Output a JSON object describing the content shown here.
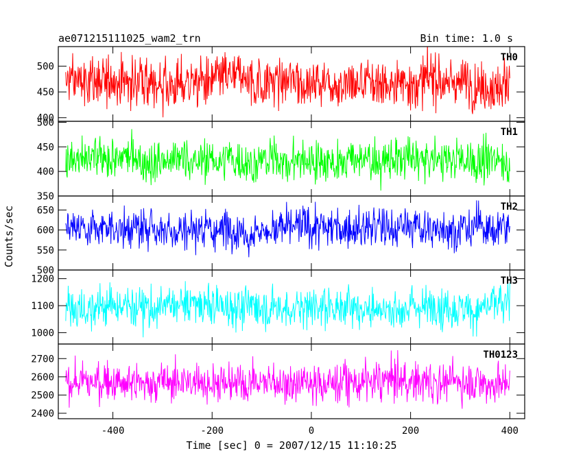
{
  "chart_data": {
    "type": "line",
    "title": "ae071215111025_wam2_trn",
    "subtitle": "Bin time: 1.0 s",
    "xlabel": "Time [sec] 0 = 2007/12/15 11:10:25",
    "ylabel": "Counts/sec",
    "xlim": [
      -510,
      430
    ],
    "x_ticks": [
      -400,
      -200,
      0,
      200,
      400
    ],
    "x_range": [
      -495,
      400
    ],
    "bin_time": 1.0,
    "grid": false,
    "panels": [
      {
        "name": "TH0",
        "color": "#ff0000",
        "ylim": [
          393,
          538
        ],
        "y_ticks": [
          400,
          450,
          500
        ],
        "mean": 470,
        "spread": 24
      },
      {
        "name": "TH1",
        "color": "#00ff00",
        "ylim": [
          350,
          502
        ],
        "y_ticks": [
          350,
          400,
          450,
          500
        ],
        "mean": 422,
        "spread": 21
      },
      {
        "name": "TH2",
        "color": "#0000ff",
        "ylim": [
          500,
          685
        ],
        "y_ticks": [
          500,
          550,
          600,
          650
        ],
        "mean": 605,
        "spread": 25
      },
      {
        "name": "TH3",
        "color": "#00ffff",
        "ylim": [
          958,
          1232
        ],
        "y_ticks": [
          1000,
          1100,
          1200
        ],
        "mean": 1098,
        "spread": 38
      },
      {
        "name": "TH0123",
        "color": "#ff00ff",
        "ylim": [
          2370,
          2780
        ],
        "y_ticks": [
          2400,
          2500,
          2600,
          2700
        ],
        "mean": 2575,
        "spread": 55
      }
    ]
  }
}
